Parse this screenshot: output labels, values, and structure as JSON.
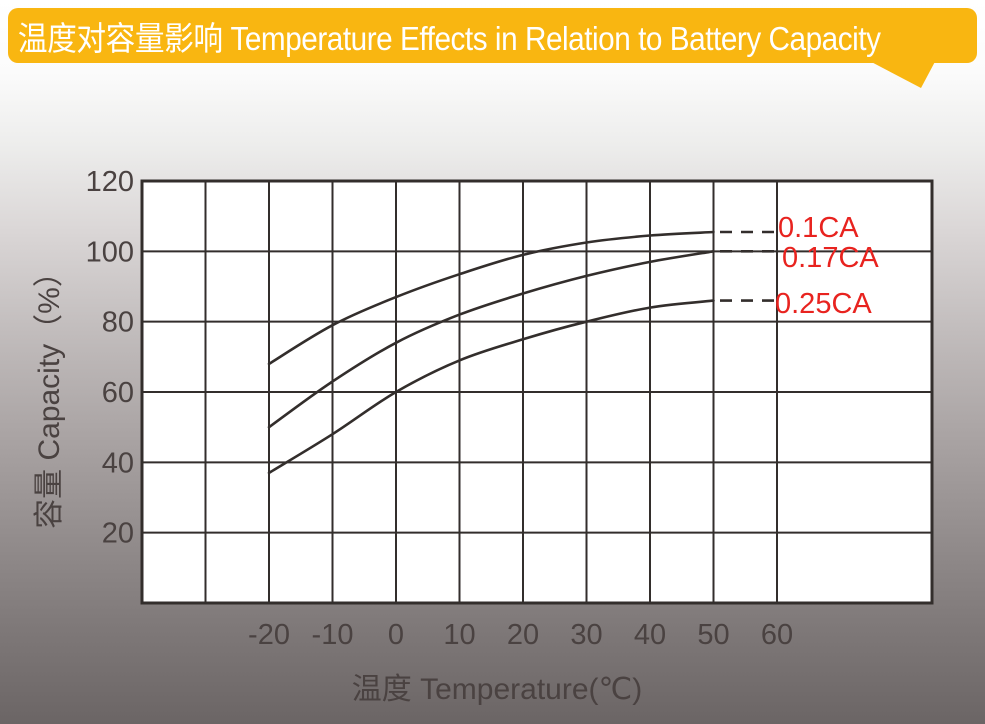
{
  "banner": {
    "title": "温度对容量影响 Temperature Effects in Relation to Battery Capacity"
  },
  "colors": {
    "banner_bg": "#f9b611",
    "banner_text": "#ffffff",
    "grid_stroke": "#332e2c",
    "curve_stroke": "#332e2c",
    "tick_text": "#4a4241",
    "series_label_red": "#e8231f",
    "plot_bg": "#ffffff"
  },
  "chart_data": {
    "type": "line",
    "title": "温度对容量影响 Temperature Effects in Relation to Battery Capacity",
    "xlabel": "温度 Temperature(℃)",
    "ylabel": "容量 Capacity（%）",
    "xlim": [
      -40,
      84
    ],
    "ylim": [
      0,
      120
    ],
    "grid": true,
    "legend_position": "right-inside",
    "x_ticks": [
      -20,
      -10,
      0,
      10,
      20,
      30,
      40,
      50,
      60
    ],
    "y_ticks": [
      20,
      40,
      60,
      80,
      100,
      120
    ],
    "x_gridlines": [
      -40,
      -30,
      -20,
      -10,
      0,
      10,
      20,
      30,
      40,
      50,
      60
    ],
    "y_gridlines": [
      0,
      20,
      40,
      60,
      80,
      100,
      120
    ],
    "x": [
      -20,
      -10,
      0,
      10,
      20,
      30,
      40,
      50
    ],
    "series": [
      {
        "name": "0.1CA",
        "values": [
          68,
          79,
          87,
          93.5,
          99,
          102.5,
          104.5,
          105.5
        ],
        "end_value": 105.5
      },
      {
        "name": "0.17CA",
        "values": [
          50,
          63,
          74,
          82,
          88,
          93,
          97,
          100
        ],
        "end_value": 100
      },
      {
        "name": "0.25CA",
        "values": [
          37,
          48,
          60,
          69,
          75,
          80,
          84,
          86
        ],
        "end_value": 86
      }
    ]
  }
}
